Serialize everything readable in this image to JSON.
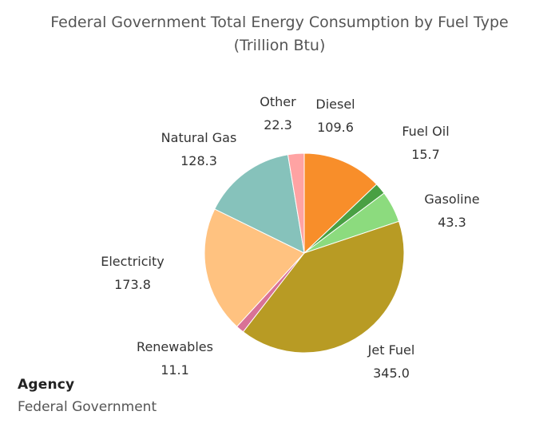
{
  "chart_data": {
    "type": "pie",
    "title_line1": "Federal Government Total Energy Consumption by Fuel Type",
    "title_line2": "(Trillion Btu)",
    "slices": [
      {
        "name": "Diesel",
        "value": 109.6,
        "value_label": "109.6",
        "color": "#F88E2A"
      },
      {
        "name": "Fuel Oil",
        "value": 15.7,
        "value_label": "15.7",
        "color": "#49A043"
      },
      {
        "name": "Gasoline",
        "value": 43.3,
        "value_label": "43.3",
        "color": "#8CDB7E"
      },
      {
        "name": "Jet Fuel",
        "value": 345.0,
        "value_label": "345.0",
        "color": "#B89B24"
      },
      {
        "name": "Renewables",
        "value": 11.1,
        "value_label": "11.1",
        "color": "#D97296"
      },
      {
        "name": "Electricity",
        "value": 173.8,
        "value_label": "173.8",
        "color": "#FFC280"
      },
      {
        "name": "Natural Gas",
        "value": 128.3,
        "value_label": "128.3",
        "color": "#86C2BB"
      },
      {
        "name": "Other",
        "value": 22.3,
        "value_label": "22.3",
        "color": "#FFA3A3"
      }
    ]
  },
  "filter": {
    "title": "Agency",
    "value": "Federal Government"
  }
}
